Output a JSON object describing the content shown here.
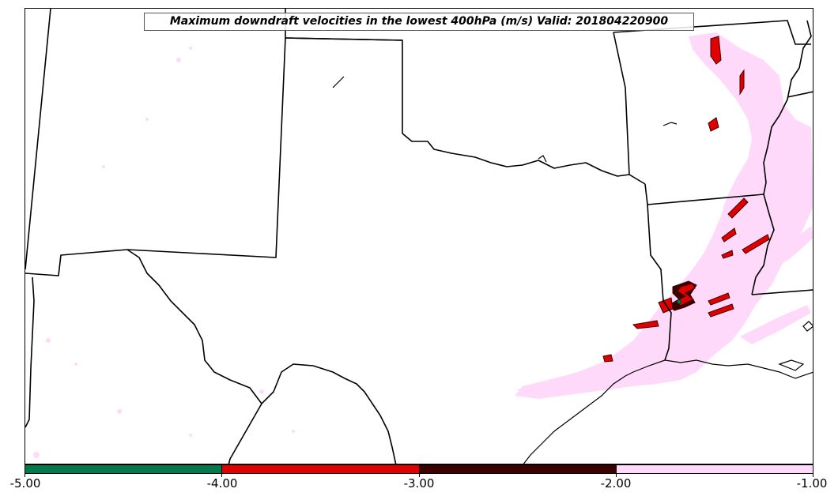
{
  "title": "Maximum downdraft velocities in the lowest 400hPa (m/s) Valid: 201804220900",
  "colorbar": {
    "colors": [
      "#007a4d",
      "#e00000",
      "#3d0000",
      "#ffd9fa"
    ],
    "tick_labels": [
      "-5.00",
      "-4.00",
      "-3.00",
      "-2.00",
      "-1.00"
    ],
    "bins": [
      {
        "min": -5.0,
        "max": -4.0,
        "color": "#007a4d"
      },
      {
        "min": -4.0,
        "max": -3.0,
        "color": "#e00000"
      },
      {
        "min": -3.0,
        "max": -2.0,
        "color": "#3d0000"
      },
      {
        "min": -2.0,
        "max": -1.0,
        "color": "#ffd9fa"
      }
    ]
  },
  "map": {
    "region": "South Central United States",
    "background": "#ffffff",
    "border_color": "#000000",
    "shading_colors": {
      "weak": "#ffd9fa",
      "moderate": "#3d0000",
      "strong": "#e00000",
      "extreme": "#007a4d"
    }
  }
}
